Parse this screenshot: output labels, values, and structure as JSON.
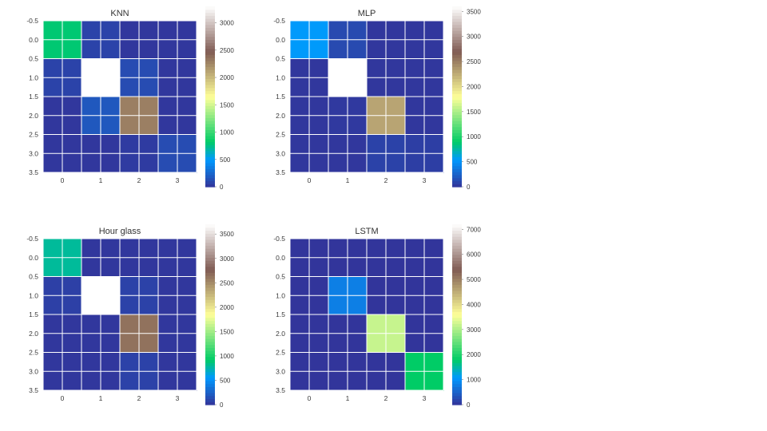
{
  "chart_data": [
    {
      "type": "heatmap",
      "title": "KNN",
      "x_ticks": [
        "0",
        "1",
        "2",
        "3"
      ],
      "y_ticks": [
        "-0.5",
        "0.0",
        "0.5",
        "1.0",
        "1.5",
        "2.0",
        "2.5",
        "3.0",
        "3.5"
      ],
      "matrix": [
        [
          800,
          80,
          20,
          20
        ],
        [
          80,
          3400,
          120,
          20
        ],
        [
          20,
          180,
          2300,
          20
        ],
        [
          20,
          20,
          40,
          120
        ]
      ],
      "colorbar": {
        "ticks": [
          "0",
          "500",
          "1000",
          "1500",
          "2000",
          "2500",
          "3000"
        ],
        "range": [
          0,
          3300
        ]
      }
    },
    {
      "type": "heatmap",
      "title": "MLP",
      "x_ticks": [
        "0",
        "1",
        "2",
        "3"
      ],
      "y_ticks": [
        "-0.5",
        "0.0",
        "0.5",
        "1.0",
        "1.5",
        "2.0",
        "2.5",
        "3.0",
        "3.5"
      ],
      "matrix": [
        [
          550,
          120,
          20,
          20
        ],
        [
          20,
          3600,
          20,
          20
        ],
        [
          20,
          30,
          2300,
          20
        ],
        [
          20,
          20,
          80,
          60
        ]
      ],
      "colorbar": {
        "ticks": [
          "0",
          "500",
          "1000",
          "1500",
          "2000",
          "2500",
          "3000",
          "3500"
        ],
        "range": [
          0,
          3600
        ]
      }
    },
    {
      "type": "heatmap",
      "title": "Hour glass",
      "x_ticks": [
        "0",
        "1",
        "2",
        "3"
      ],
      "y_ticks": [
        "-0.5",
        "0.0",
        "0.5",
        "1.0",
        "1.5",
        "2.0",
        "2.5",
        "3.0",
        "3.5"
      ],
      "matrix": [
        [
          800,
          20,
          20,
          20
        ],
        [
          70,
          3700,
          80,
          20
        ],
        [
          20,
          20,
          2650,
          20
        ],
        [
          20,
          20,
          80,
          20
        ]
      ],
      "colorbar": {
        "ticks": [
          "0",
          "500",
          "1000",
          "1500",
          "2000",
          "2500",
          "3000",
          "3500"
        ],
        "range": [
          0,
          3700
        ]
      }
    },
    {
      "type": "heatmap",
      "title": "LSTM",
      "x_ticks": [
        "0",
        "1",
        "2",
        "3"
      ],
      "y_ticks": [
        "-0.5",
        "0.0",
        "0.5",
        "1.0",
        "1.5",
        "2.0",
        "2.5",
        "3.0",
        "3.5"
      ],
      "matrix": [
        [
          20,
          20,
          20,
          20
        ],
        [
          20,
          800,
          20,
          20
        ],
        [
          20,
          20,
          3200,
          20
        ],
        [
          20,
          20,
          20,
          1800
        ]
      ],
      "colorbar": {
        "ticks": [
          "0",
          "1000",
          "2000",
          "3000",
          "4000",
          "5000",
          "6000",
          "7000"
        ],
        "range": [
          0,
          7200
        ]
      }
    }
  ]
}
